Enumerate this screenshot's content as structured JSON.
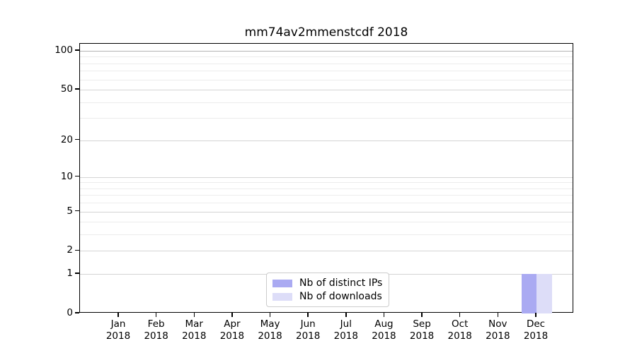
{
  "chart_data": {
    "type": "bar",
    "title": "mm74av2mmenstcdf 2018",
    "categories": [
      "Jan",
      "Feb",
      "Mar",
      "Apr",
      "May",
      "Jun",
      "Jul",
      "Aug",
      "Sep",
      "Oct",
      "Nov",
      "Dec"
    ],
    "year": "2018",
    "series": [
      {
        "name": "Nb of distinct IPs",
        "color": "#aaaaf2",
        "values": [
          0,
          0,
          0,
          0,
          0,
          0,
          0,
          0,
          0,
          0,
          0,
          1
        ]
      },
      {
        "name": "Nb of downloads",
        "color": "#ddddf8",
        "values": [
          0,
          0,
          0,
          0,
          0,
          0,
          0,
          0,
          0,
          0,
          0,
          1
        ]
      }
    ],
    "xlabel": "",
    "ylabel": "",
    "y_axis": {
      "scale": "log1p",
      "ylim": [
        0,
        113
      ],
      "major_ticks": [
        0,
        1,
        2,
        5,
        10,
        20,
        50,
        100
      ],
      "minor_ticks": [
        3,
        4,
        6,
        7,
        8,
        9,
        30,
        40,
        60,
        70,
        80,
        90
      ]
    },
    "grid": true,
    "legend_position": "lower center",
    "colors": {
      "major_grid": "#d4d4d4",
      "minor_grid": "#ececec",
      "top_grid": "#b3b3b3",
      "spine": "#000000",
      "text": "#000000",
      "background": "#ffffff"
    }
  }
}
